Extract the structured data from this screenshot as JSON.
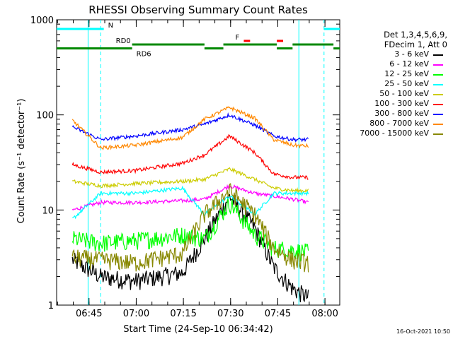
{
  "chart_data": {
    "type": "line",
    "title": "RHESSI Observing Summary Count Rates",
    "xlabel": "Start Time (24-Sep-10 06:34:42)",
    "ylabel": "Count Rate (s⁻¹ detector⁻¹)",
    "yscale": "log",
    "ylim": [
      1,
      1000
    ],
    "xlim_minutes": [
      0,
      90
    ],
    "x_ticks": [
      {
        "label": "06:45",
        "minutes": 10.3
      },
      {
        "label": "07:00",
        "minutes": 25.3
      },
      {
        "label": "07:15",
        "minutes": 40.3
      },
      {
        "label": "07:30",
        "minutes": 55.3
      },
      {
        "label": "07:45",
        "minutes": 70.3
      },
      {
        "label": "08:00",
        "minutes": 85.3
      }
    ],
    "y_ticks": [
      {
        "label": "1",
        "value": 1
      },
      {
        "label": "10",
        "value": 10
      },
      {
        "label": "100",
        "value": 100
      },
      {
        "label": "1000",
        "value": 1000
      }
    ],
    "x": [
      5,
      14,
      25,
      40,
      47,
      55,
      63,
      69,
      75,
      80
    ],
    "series": [
      {
        "name": "3 - 6 keV",
        "color": "#000000",
        "values": [
          3.0,
          2.0,
          1.8,
          2.2,
          5.0,
          14.0,
          6.5,
          2.5,
          1.5,
          1.2
        ]
      },
      {
        "name": "6 - 12 keV",
        "color": "#ff00ff",
        "values": [
          10.0,
          12.0,
          12.0,
          12.5,
          13.0,
          18.0,
          15.0,
          14.0,
          13.0,
          12.0
        ]
      },
      {
        "name": "12 - 25 keV",
        "color": "#00ff00",
        "values": [
          5.0,
          4.5,
          4.8,
          5.5,
          5.0,
          12.0,
          5.5,
          4.0,
          3.8,
          3.6
        ]
      },
      {
        "name": "25 - 50 keV",
        "color": "#00ffff",
        "values": [
          8.0,
          15.0,
          15.0,
          17.0,
          9.0,
          14.0,
          9.0,
          15.0,
          15.0,
          15.0
        ]
      },
      {
        "name": "50 - 100 keV",
        "color": "#cccc00",
        "values": [
          20.0,
          18.0,
          19.0,
          20.0,
          21.0,
          27.0,
          21.0,
          17.0,
          16.0,
          16.0
        ]
      },
      {
        "name": "100 - 300 keV",
        "color": "#ff0000",
        "values": [
          30.0,
          25.0,
          26.0,
          31.0,
          38.0,
          60.0,
          40.0,
          24.0,
          22.0,
          22.0
        ]
      },
      {
        "name": "300 - 800 keV",
        "color": "#0000ff",
        "values": [
          75.0,
          55.0,
          60.0,
          70.0,
          80.0,
          100.0,
          78.0,
          60.0,
          55.0,
          55.0
        ]
      },
      {
        "name": "800 - 7000 keV",
        "color": "#ff8800",
        "values": [
          88.0,
          45.0,
          48.0,
          58.0,
          90.0,
          120.0,
          92.0,
          55.0,
          48.0,
          47.0
        ]
      },
      {
        "name": "7000 - 15000 keV",
        "color": "#888800",
        "values": [
          3.2,
          3.0,
          2.8,
          3.5,
          9.0,
          16.0,
          9.0,
          4.0,
          3.0,
          2.8
        ]
      }
    ],
    "event_bars": [
      {
        "label": "N",
        "color": "#00ffff",
        "value": 800,
        "segments": [
          [
            0,
            15
          ],
          [
            85,
            90
          ]
        ]
      },
      {
        "label": "F",
        "color": "#ff0000",
        "value": 600,
        "segments": [
          [
            59.5,
            61.5
          ],
          [
            70,
            72
          ]
        ]
      },
      {
        "label": "RD0",
        "color": "#008800",
        "value": 550,
        "segments": [
          [
            24,
            47
          ],
          [
            53,
            70
          ],
          [
            75,
            88
          ]
        ]
      },
      {
        "label": "RD6",
        "color": "#008800",
        "value": 500,
        "segments": [
          [
            0,
            24
          ],
          [
            47,
            53
          ],
          [
            70,
            75
          ],
          [
            88,
            90
          ]
        ]
      }
    ],
    "vlines": [
      {
        "minutes": 14,
        "color": "#00ffff",
        "style": "dashed"
      },
      {
        "minutes": 85,
        "color": "#00ffff",
        "style": "dashed"
      },
      {
        "minutes": 10,
        "color": "#00ffff",
        "style": "solid"
      },
      {
        "minutes": 77,
        "color": "#00ffff",
        "style": "solid"
      }
    ],
    "legend": {
      "header_line1": "Det 1,3,4,5,6,9,",
      "header_line2": "FDecim 1, Att 0"
    }
  },
  "footer": {
    "timestamp": "16-Oct-2021 10:50"
  }
}
